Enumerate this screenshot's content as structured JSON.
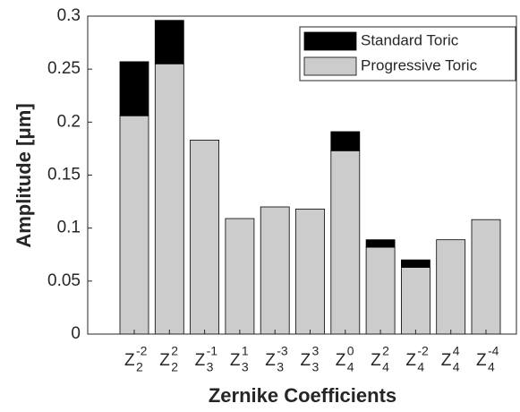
{
  "chart_data": {
    "type": "stacked-bar",
    "xlabel": "Zernike Coefficients",
    "ylabel": "Amplitude [μm]",
    "categories": [
      {
        "base": "Z",
        "sub": "2",
        "sup": "-2"
      },
      {
        "base": "Z",
        "sub": "2",
        "sup": "2"
      },
      {
        "base": "Z",
        "sub": "3",
        "sup": "-1"
      },
      {
        "base": "Z",
        "sub": "3",
        "sup": "1"
      },
      {
        "base": "Z",
        "sub": "3",
        "sup": "-3"
      },
      {
        "base": "Z",
        "sub": "3",
        "sup": "3"
      },
      {
        "base": "Z",
        "sub": "4",
        "sup": "0"
      },
      {
        "base": "Z",
        "sub": "4",
        "sup": "2"
      },
      {
        "base": "Z",
        "sub": "4",
        "sup": "-2"
      },
      {
        "base": "Z",
        "sub": "4",
        "sup": "4"
      },
      {
        "base": "Z",
        "sub": "4",
        "sup": "-4"
      }
    ],
    "series": [
      {
        "name": "Standard Toric",
        "color": "#000000",
        "values": [
          0.051,
          0.041,
          0,
          0,
          0,
          0,
          0.018,
          0.007,
          0.007,
          0,
          0
        ]
      },
      {
        "name": "Progressive Toric",
        "color": "#cccccc",
        "values": [
          0.206,
          0.255,
          0.183,
          0.109,
          0.12,
          0.118,
          0.173,
          0.082,
          0.063,
          0.089,
          0.108
        ]
      }
    ],
    "ylim": [
      0,
      0.3
    ],
    "yticks": [
      0,
      0.05,
      0.1,
      0.15,
      0.2,
      0.25,
      0.3
    ],
    "legend": "upper right"
  }
}
